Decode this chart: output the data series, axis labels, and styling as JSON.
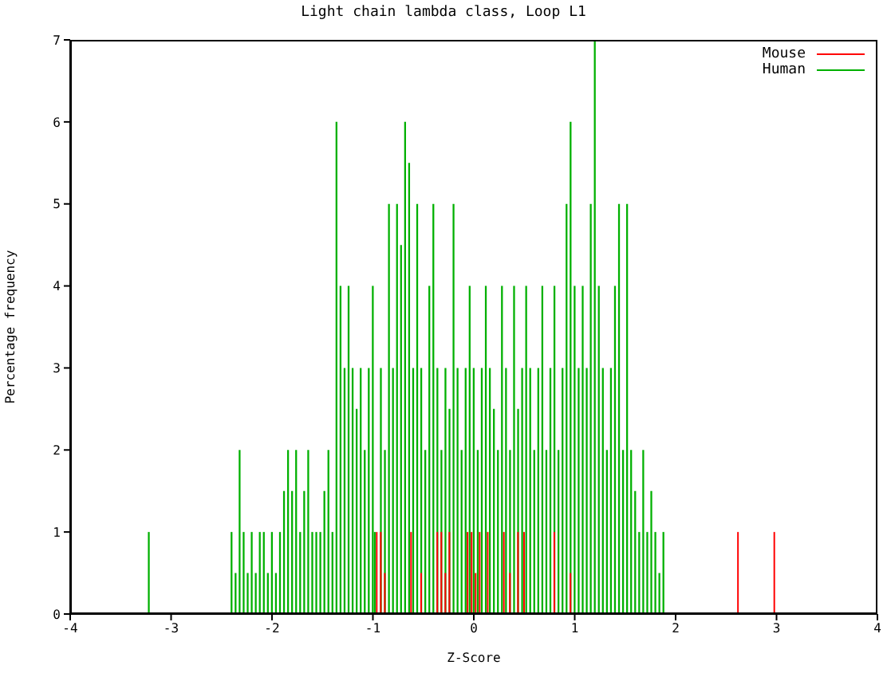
{
  "chart_data": {
    "type": "bar",
    "title": "Light chain lambda class, Loop L1",
    "xlabel": "Z-Score",
    "ylabel": "Percentage frequency",
    "xlim": [
      -4,
      4
    ],
    "xticks": [
      -4,
      -3,
      -2,
      -1,
      0,
      1,
      2,
      3,
      4
    ],
    "ylim": [
      0,
      7
    ],
    "yticks": [
      0,
      1,
      2,
      3,
      4,
      5,
      6,
      7
    ],
    "grid": false,
    "legend": "top right",
    "series": [
      {
        "name": "Mouse",
        "color": "#ff0000",
        "x": [
          -0.96,
          -0.92,
          -0.88,
          -0.62,
          -0.52,
          -0.36,
          -0.32,
          -0.28,
          -0.24,
          -0.06,
          -0.02,
          0.02,
          0.06,
          0.14,
          0.3,
          0.36,
          0.44,
          0.5,
          0.8,
          0.96,
          2.62,
          2.98
        ],
        "values": [
          1,
          1,
          0.5,
          1,
          0.5,
          1,
          1,
          0.5,
          1,
          1,
          1,
          0.5,
          1,
          1,
          1,
          0.5,
          1,
          1,
          1,
          0.5,
          1,
          1
        ]
      },
      {
        "name": "Human",
        "color": "#00b000",
        "x": [
          -3.22,
          -2.4,
          -2.36,
          -2.32,
          -2.28,
          -2.24,
          -2.2,
          -2.16,
          -2.12,
          -2.08,
          -2.04,
          -2.0,
          -1.96,
          -1.92,
          -1.88,
          -1.84,
          -1.8,
          -1.76,
          -1.72,
          -1.68,
          -1.64,
          -1.6,
          -1.56,
          -1.52,
          -1.48,
          -1.44,
          -1.4,
          -1.36,
          -1.32,
          -1.28,
          -1.24,
          -1.2,
          -1.16,
          -1.12,
          -1.08,
          -1.04,
          -1.0,
          -0.98,
          -0.92,
          -0.88,
          -0.84,
          -0.8,
          -0.76,
          -0.72,
          -0.68,
          -0.64,
          -0.6,
          -0.56,
          -0.52,
          -0.48,
          -0.44,
          -0.4,
          -0.36,
          -0.32,
          -0.28,
          -0.24,
          -0.2,
          -0.16,
          -0.12,
          -0.08,
          -0.04,
          0.0,
          0.04,
          0.08,
          0.12,
          0.16,
          0.2,
          0.24,
          0.28,
          0.32,
          0.36,
          0.4,
          0.44,
          0.48,
          0.52,
          0.56,
          0.6,
          0.64,
          0.68,
          0.72,
          0.76,
          0.8,
          0.84,
          0.88,
          0.92,
          0.96,
          1.0,
          1.04,
          1.08,
          1.12,
          1.16,
          1.2,
          1.24,
          1.28,
          1.32,
          1.36,
          1.4,
          1.44,
          1.48,
          1.52,
          1.56,
          1.6,
          1.64,
          1.68,
          1.72,
          1.76,
          1.8,
          1.84,
          1.88
        ],
        "values": [
          1,
          1,
          0.5,
          2,
          1,
          0.5,
          1,
          0.5,
          1,
          1,
          0.5,
          1,
          0.5,
          1,
          1.5,
          2,
          1.5,
          2,
          1,
          1.5,
          2,
          1,
          1,
          1,
          1.5,
          2,
          1,
          6,
          4,
          3,
          4,
          3,
          2.5,
          3,
          2,
          3,
          4,
          1,
          3,
          2,
          5,
          3,
          5,
          4.5,
          6,
          5.5,
          3,
          5,
          3,
          2,
          4,
          5,
          3,
          2,
          3,
          2.5,
          5,
          3,
          2,
          3,
          4,
          3,
          2,
          3,
          4,
          3,
          2.5,
          2,
          4,
          3,
          2,
          4,
          2.5,
          3,
          4,
          3,
          2,
          3,
          4,
          2,
          3,
          4,
          2,
          3,
          5,
          6,
          4,
          3,
          4,
          3,
          5,
          7,
          4,
          3,
          2,
          3,
          4,
          5,
          2,
          5,
          2,
          1.5,
          1,
          2,
          1,
          1.5,
          1,
          0.5,
          1
        ]
      }
    ]
  }
}
